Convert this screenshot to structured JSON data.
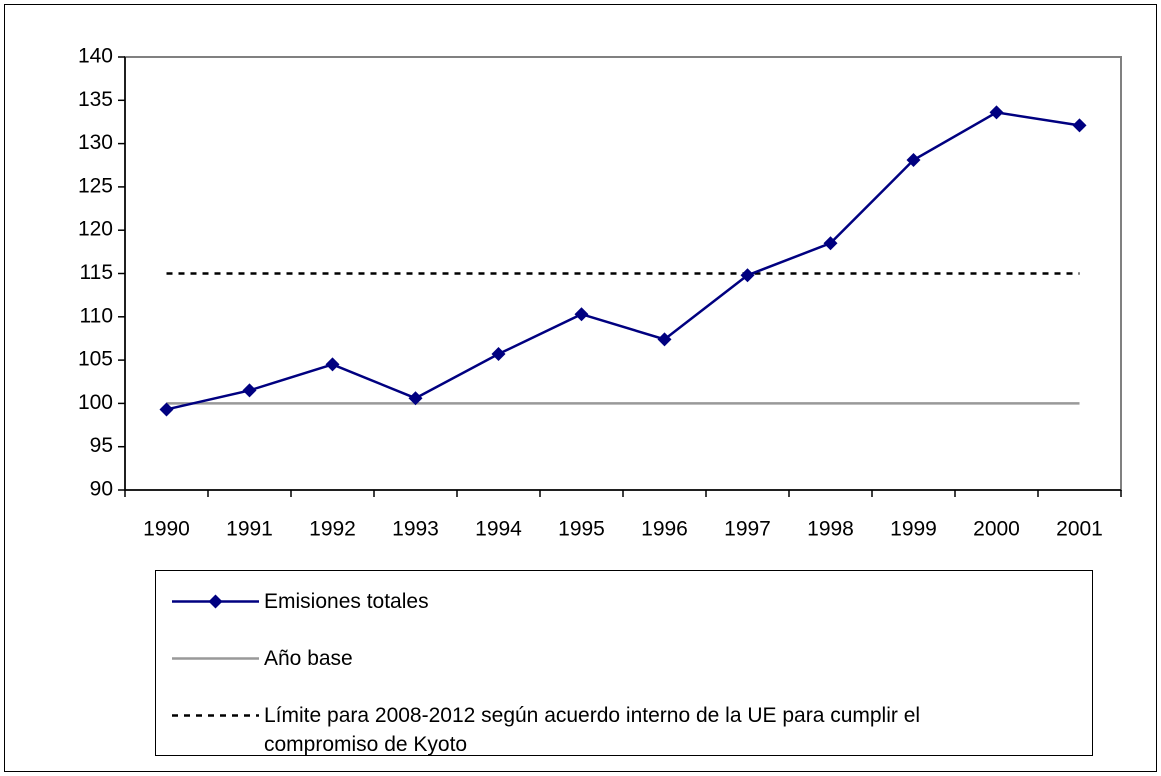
{
  "chart_data": {
    "type": "line",
    "categories": [
      "1990",
      "1991",
      "1992",
      "1993",
      "1994",
      "1995",
      "1996",
      "1997",
      "1998",
      "1999",
      "2000",
      "2001"
    ],
    "series": [
      {
        "name": "Emisiones totales",
        "color": "#000080",
        "marker": "diamond",
        "values": [
          99.3,
          101.5,
          104.5,
          100.6,
          105.7,
          110.3,
          107.4,
          114.8,
          118.5,
          128.1,
          133.6,
          132.1
        ]
      },
      {
        "name": "Año base",
        "color": "#999999",
        "values": [
          100,
          100,
          100,
          100,
          100,
          100,
          100,
          100,
          100,
          100,
          100,
          100
        ]
      },
      {
        "name": "Límite para 2008-2012 según acuerdo interno de la UE para cumplir el compromiso de Kyoto",
        "color": "#000000",
        "dash": true,
        "values": [
          115,
          115,
          115,
          115,
          115,
          115,
          115,
          115,
          115,
          115,
          115,
          115
        ]
      }
    ],
    "ylim": [
      90,
      140
    ],
    "yticks": [
      90,
      95,
      100,
      105,
      110,
      115,
      120,
      125,
      130,
      135,
      140
    ]
  }
}
